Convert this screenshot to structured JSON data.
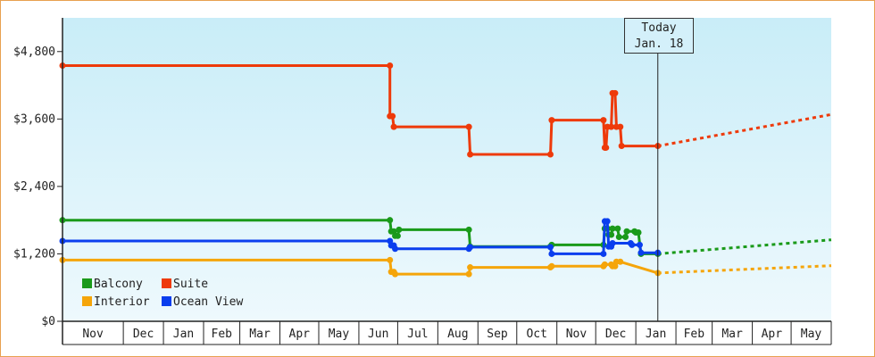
{
  "chart_data": {
    "type": "line",
    "title": "",
    "xlabel": "",
    "ylabel": "",
    "ylim": [
      0,
      5400
    ],
    "yticks": [
      {
        "value": 0,
        "label": "$0"
      },
      {
        "value": 1200,
        "label": "$1,200"
      },
      {
        "value": 2400,
        "label": "$2,400"
      },
      {
        "value": 3600,
        "label": "$3,600"
      },
      {
        "value": 4800,
        "label": "$4,800"
      }
    ],
    "x_range": [
      "2016-10-15",
      "2018-06-01"
    ],
    "months": [
      {
        "label": "Nov",
        "date": "2016-11-01"
      },
      {
        "label": "Dec",
        "date": "2016-12-01"
      },
      {
        "label": "Jan",
        "date": "2017-01-01"
      },
      {
        "label": "Feb",
        "date": "2017-02-01"
      },
      {
        "label": "Mar",
        "date": "2017-03-01"
      },
      {
        "label": "Apr",
        "date": "2017-04-01"
      },
      {
        "label": "May",
        "date": "2017-05-01"
      },
      {
        "label": "Jun",
        "date": "2017-06-01"
      },
      {
        "label": "Jul",
        "date": "2017-07-01"
      },
      {
        "label": "Aug",
        "date": "2017-08-01"
      },
      {
        "label": "Sep",
        "date": "2017-09-01"
      },
      {
        "label": "Oct",
        "date": "2017-10-01"
      },
      {
        "label": "Nov",
        "date": "2017-11-01"
      },
      {
        "label": "Dec",
        "date": "2017-12-01"
      },
      {
        "label": "Jan",
        "date": "2018-01-01"
      },
      {
        "label": "Feb",
        "date": "2018-02-01"
      },
      {
        "label": "Mar",
        "date": "2018-03-01"
      },
      {
        "label": "Apr",
        "date": "2018-04-01"
      },
      {
        "label": "May",
        "date": "2018-05-01"
      },
      {
        "label": "",
        "date": "2018-06-01"
      }
    ],
    "today": {
      "line1": "Today",
      "line2": "Jan. 18",
      "date": "2018-01-18"
    },
    "legend_position": "bottom-left",
    "grid": false,
    "background": {
      "top": "#c9edf8",
      "bottom": "#eef9fd"
    },
    "series": [
      {
        "name": "Suite",
        "color": "#ee3a0a",
        "points": [
          [
            "2016-10-15",
            4550
          ],
          [
            "2017-06-25",
            4550
          ],
          [
            "2017-06-25",
            3650
          ],
          [
            "2017-06-27",
            3650
          ],
          [
            "2017-06-28",
            3460
          ],
          [
            "2017-08-25",
            3460
          ],
          [
            "2017-08-26",
            2970
          ],
          [
            "2017-10-27",
            2970
          ],
          [
            "2017-10-28",
            3580
          ],
          [
            "2017-12-07",
            3580
          ],
          [
            "2017-12-08",
            3090
          ],
          [
            "2017-12-09",
            3090
          ],
          [
            "2017-12-10",
            3460
          ],
          [
            "2017-12-13",
            3460
          ],
          [
            "2017-12-14",
            4060
          ],
          [
            "2017-12-16",
            4060
          ],
          [
            "2017-12-17",
            3460
          ],
          [
            "2017-12-20",
            3460
          ],
          [
            "2017-12-21",
            3120
          ],
          [
            "2018-01-18",
            3120
          ]
        ],
        "forecast": [
          [
            "2018-01-18",
            3120
          ],
          [
            "2018-06-01",
            3680
          ]
        ]
      },
      {
        "name": "Balcony",
        "color": "#1a9a1a",
        "points": [
          [
            "2016-10-15",
            1800
          ],
          [
            "2017-06-25",
            1800
          ],
          [
            "2017-06-26",
            1600
          ],
          [
            "2017-06-28",
            1600
          ],
          [
            "2017-06-29",
            1520
          ],
          [
            "2017-07-01",
            1520
          ],
          [
            "2017-07-02",
            1630
          ],
          [
            "2017-08-25",
            1630
          ],
          [
            "2017-08-26",
            1330
          ],
          [
            "2017-10-27",
            1330
          ],
          [
            "2017-10-28",
            1360
          ],
          [
            "2017-12-07",
            1360
          ],
          [
            "2017-12-08",
            1650
          ],
          [
            "2017-12-10",
            1650
          ],
          [
            "2017-12-11",
            1540
          ],
          [
            "2017-12-13",
            1540
          ],
          [
            "2017-12-14",
            1650
          ],
          [
            "2017-12-18",
            1650
          ],
          [
            "2017-12-19",
            1500
          ],
          [
            "2017-12-24",
            1500
          ],
          [
            "2017-12-25",
            1600
          ],
          [
            "2017-12-31",
            1600
          ],
          [
            "2018-01-01",
            1580
          ],
          [
            "2018-01-03",
            1580
          ],
          [
            "2018-01-05",
            1200
          ],
          [
            "2018-01-18",
            1200
          ]
        ],
        "forecast": [
          [
            "2018-01-18",
            1200
          ],
          [
            "2018-06-01",
            1450
          ]
        ]
      },
      {
        "name": "Ocean View",
        "color": "#0a3eee",
        "points": [
          [
            "2016-10-15",
            1430
          ],
          [
            "2017-06-25",
            1430
          ],
          [
            "2017-06-26",
            1350
          ],
          [
            "2017-06-28",
            1350
          ],
          [
            "2017-06-29",
            1290
          ],
          [
            "2017-08-25",
            1290
          ],
          [
            "2017-08-26",
            1320
          ],
          [
            "2017-10-27",
            1320
          ],
          [
            "2017-10-28",
            1200
          ],
          [
            "2017-12-07",
            1200
          ],
          [
            "2017-12-08",
            1780
          ],
          [
            "2017-12-10",
            1780
          ],
          [
            "2017-12-11",
            1330
          ],
          [
            "2017-12-13",
            1330
          ],
          [
            "2017-12-14",
            1390
          ],
          [
            "2017-12-28",
            1390
          ],
          [
            "2017-12-29",
            1360
          ],
          [
            "2018-01-04",
            1360
          ],
          [
            "2018-01-05",
            1220
          ],
          [
            "2018-01-18",
            1220
          ]
        ],
        "forecast": []
      },
      {
        "name": "Interior",
        "color": "#f5a50a",
        "points": [
          [
            "2016-10-15",
            1090
          ],
          [
            "2017-06-25",
            1090
          ],
          [
            "2017-06-26",
            880
          ],
          [
            "2017-06-28",
            880
          ],
          [
            "2017-06-29",
            840
          ],
          [
            "2017-08-25",
            840
          ],
          [
            "2017-08-26",
            960
          ],
          [
            "2017-10-27",
            960
          ],
          [
            "2017-10-28",
            980
          ],
          [
            "2017-12-07",
            980
          ],
          [
            "2017-12-08",
            1010
          ],
          [
            "2017-12-13",
            1010
          ],
          [
            "2017-12-14",
            980
          ],
          [
            "2017-12-16",
            980
          ],
          [
            "2017-12-17",
            1060
          ],
          [
            "2017-12-20",
            1060
          ],
          [
            "2018-01-18",
            860
          ]
        ],
        "forecast": [
          [
            "2018-01-18",
            860
          ],
          [
            "2018-06-01",
            990
          ]
        ]
      }
    ]
  },
  "legend": [
    {
      "label": "Balcony",
      "color": "#1a9a1a"
    },
    {
      "label": "Suite",
      "color": "#ee3a0a"
    },
    {
      "label": "Interior",
      "color": "#f5a50a"
    },
    {
      "label": "Ocean View",
      "color": "#0a3eee"
    }
  ]
}
